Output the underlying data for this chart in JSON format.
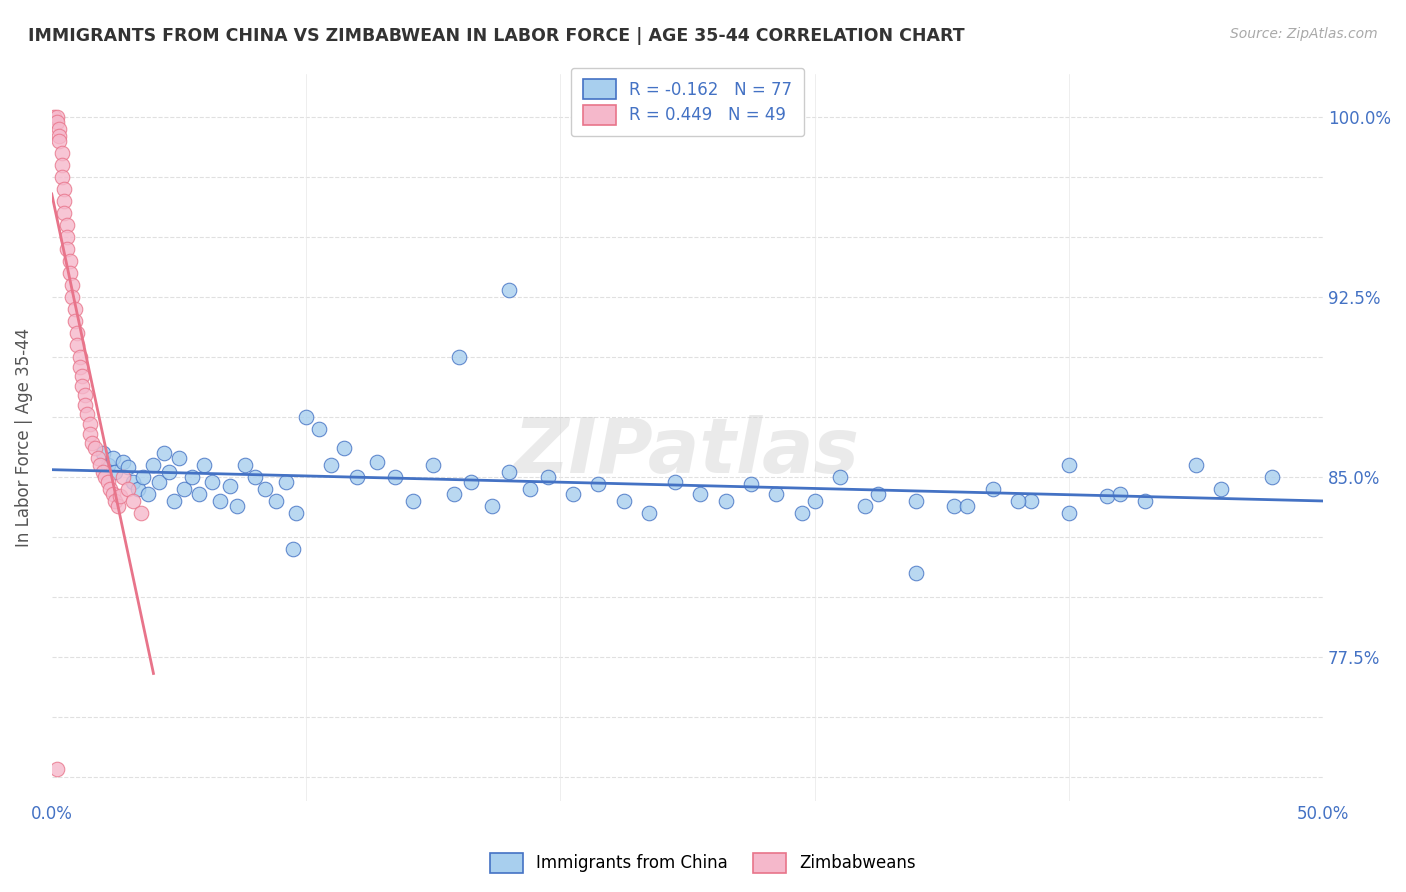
{
  "title": "IMMIGRANTS FROM CHINA VS ZIMBABWEAN IN LABOR FORCE | AGE 35-44 CORRELATION CHART",
  "source": "Source: ZipAtlas.com",
  "ylabel": "In Labor Force | Age 35-44",
  "yticks": [
    0.725,
    0.75,
    0.775,
    0.8,
    0.825,
    0.85,
    0.875,
    0.9,
    0.925,
    0.95,
    0.975,
    1.0
  ],
  "ytick_labels": [
    "",
    "",
    "77.5%",
    "",
    "",
    "85.0%",
    "",
    "",
    "92.5%",
    "",
    "",
    "100.0%"
  ],
  "xmin": 0.0,
  "xmax": 0.5,
  "ymin": 0.715,
  "ymax": 1.018,
  "china_R": -0.162,
  "china_N": 77,
  "zimb_R": 0.449,
  "zimb_N": 49,
  "china_color": "#A8CFEE",
  "zimb_color": "#F5B8CB",
  "china_edge_color": "#4472C4",
  "zimb_edge_color": "#E8748A",
  "china_line_color": "#4472C4",
  "zimb_line_color": "#E8748A",
  "watermark": "ZIPatlas",
  "china_x": [
    0.02,
    0.022,
    0.024,
    0.025,
    0.028,
    0.03,
    0.032,
    0.034,
    0.036,
    0.038,
    0.04,
    0.042,
    0.044,
    0.046,
    0.048,
    0.05,
    0.052,
    0.055,
    0.058,
    0.06,
    0.063,
    0.066,
    0.07,
    0.073,
    0.076,
    0.08,
    0.084,
    0.088,
    0.092,
    0.096,
    0.1,
    0.105,
    0.11,
    0.115,
    0.12,
    0.128,
    0.135,
    0.142,
    0.15,
    0.158,
    0.165,
    0.173,
    0.18,
    0.188,
    0.195,
    0.205,
    0.215,
    0.225,
    0.235,
    0.245,
    0.255,
    0.265,
    0.275,
    0.285,
    0.295,
    0.31,
    0.325,
    0.34,
    0.355,
    0.37,
    0.385,
    0.4,
    0.415,
    0.43,
    0.45,
    0.46,
    0.48,
    0.3,
    0.32,
    0.34,
    0.36,
    0.38,
    0.4,
    0.42,
    0.16,
    0.18,
    0.095
  ],
  "china_y": [
    0.86,
    0.855,
    0.858,
    0.852,
    0.856,
    0.854,
    0.848,
    0.845,
    0.85,
    0.843,
    0.855,
    0.848,
    0.86,
    0.852,
    0.84,
    0.858,
    0.845,
    0.85,
    0.843,
    0.855,
    0.848,
    0.84,
    0.846,
    0.838,
    0.855,
    0.85,
    0.845,
    0.84,
    0.848,
    0.835,
    0.875,
    0.87,
    0.855,
    0.862,
    0.85,
    0.856,
    0.85,
    0.84,
    0.855,
    0.843,
    0.848,
    0.838,
    0.852,
    0.845,
    0.85,
    0.843,
    0.847,
    0.84,
    0.835,
    0.848,
    0.843,
    0.84,
    0.847,
    0.843,
    0.835,
    0.85,
    0.843,
    0.84,
    0.838,
    0.845,
    0.84,
    0.855,
    0.842,
    0.84,
    0.855,
    0.845,
    0.85,
    0.84,
    0.838,
    0.81,
    0.838,
    0.84,
    0.835,
    0.843,
    0.9,
    0.928,
    0.82
  ],
  "zimb_x": [
    0.001,
    0.002,
    0.002,
    0.003,
    0.003,
    0.003,
    0.004,
    0.004,
    0.004,
    0.005,
    0.005,
    0.005,
    0.006,
    0.006,
    0.006,
    0.007,
    0.007,
    0.008,
    0.008,
    0.009,
    0.009,
    0.01,
    0.01,
    0.011,
    0.011,
    0.012,
    0.012,
    0.013,
    0.013,
    0.014,
    0.015,
    0.015,
    0.016,
    0.017,
    0.018,
    0.019,
    0.02,
    0.021,
    0.022,
    0.023,
    0.024,
    0.025,
    0.026,
    0.027,
    0.028,
    0.03,
    0.032,
    0.035,
    0.002
  ],
  "zimb_y": [
    1.0,
    1.0,
    0.998,
    0.995,
    0.992,
    0.99,
    0.985,
    0.98,
    0.975,
    0.97,
    0.965,
    0.96,
    0.955,
    0.95,
    0.945,
    0.94,
    0.935,
    0.93,
    0.925,
    0.92,
    0.915,
    0.91,
    0.905,
    0.9,
    0.896,
    0.892,
    0.888,
    0.884,
    0.88,
    0.876,
    0.872,
    0.868,
    0.864,
    0.862,
    0.858,
    0.855,
    0.852,
    0.85,
    0.848,
    0.845,
    0.843,
    0.84,
    0.838,
    0.842,
    0.85,
    0.845,
    0.84,
    0.835,
    0.728
  ]
}
